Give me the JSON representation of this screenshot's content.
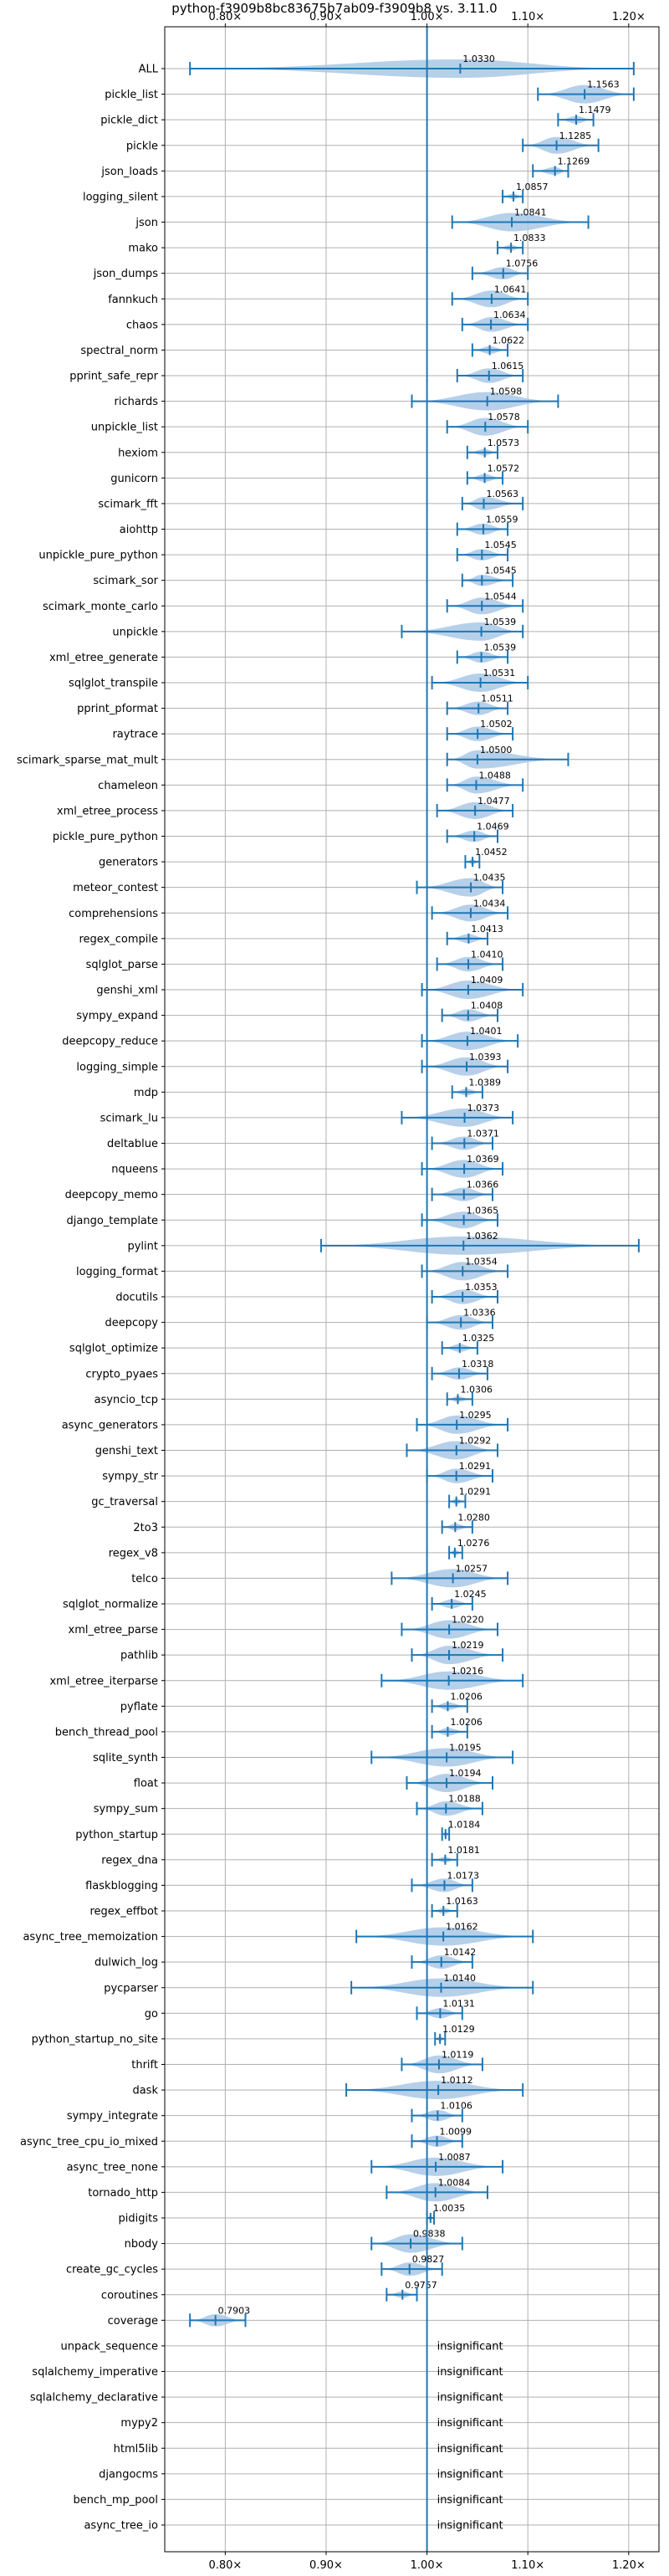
{
  "chart_data": {
    "type": "violin",
    "title": "python-f3909b8bc83675b7ab09-f3909b8 vs. 3.11.0",
    "xlabel": "",
    "ylabel": "",
    "xlim": [
      0.74,
      1.23
    ],
    "x_ticks": [
      0.8,
      0.9,
      1.0,
      1.1,
      1.2
    ],
    "x_tick_labels": [
      "0.80×",
      "0.90×",
      "1.00×",
      "1.10×",
      "1.20×"
    ],
    "reference_line": 1.0,
    "grid": true,
    "colors": {
      "violin": "#a9c8e6",
      "whisker": "#1f77b4",
      "refline": "#1f77b4",
      "grid": "#b0b0b0"
    },
    "insignificant_label": "insignificant",
    "benchmarks": [
      {
        "name": "ALL",
        "mean": 1.033,
        "label": "1.0330",
        "min": 0.765,
        "max": 1.205
      },
      {
        "name": "pickle_list",
        "mean": 1.1563,
        "label": "1.1563",
        "min": 1.11,
        "max": 1.205
      },
      {
        "name": "pickle_dict",
        "mean": 1.1479,
        "label": "1.1479",
        "min": 1.13,
        "max": 1.165
      },
      {
        "name": "pickle",
        "mean": 1.1285,
        "label": "1.1285",
        "min": 1.095,
        "max": 1.17
      },
      {
        "name": "json_loads",
        "mean": 1.1269,
        "label": "1.1269",
        "min": 1.105,
        "max": 1.14
      },
      {
        "name": "logging_silent",
        "mean": 1.0857,
        "label": "1.0857",
        "min": 1.075,
        "max": 1.095
      },
      {
        "name": "json",
        "mean": 1.0841,
        "label": "1.0841",
        "min": 1.025,
        "max": 1.16
      },
      {
        "name": "mako",
        "mean": 1.0833,
        "label": "1.0833",
        "min": 1.07,
        "max": 1.095
      },
      {
        "name": "json_dumps",
        "mean": 1.0756,
        "label": "1.0756",
        "min": 1.045,
        "max": 1.1
      },
      {
        "name": "fannkuch",
        "mean": 1.0641,
        "label": "1.0641",
        "min": 1.025,
        "max": 1.1
      },
      {
        "name": "chaos",
        "mean": 1.0634,
        "label": "1.0634",
        "min": 1.035,
        "max": 1.1
      },
      {
        "name": "spectral_norm",
        "mean": 1.0622,
        "label": "1.0622",
        "min": 1.045,
        "max": 1.08
      },
      {
        "name": "pprint_safe_repr",
        "mean": 1.0615,
        "label": "1.0615",
        "min": 1.03,
        "max": 1.095
      },
      {
        "name": "richards",
        "mean": 1.0598,
        "label": "1.0598",
        "min": 0.985,
        "max": 1.13
      },
      {
        "name": "unpickle_list",
        "mean": 1.0578,
        "label": "1.0578",
        "min": 1.02,
        "max": 1.1
      },
      {
        "name": "hexiom",
        "mean": 1.0573,
        "label": "1.0573",
        "min": 1.04,
        "max": 1.07
      },
      {
        "name": "gunicorn",
        "mean": 1.0572,
        "label": "1.0572",
        "min": 1.04,
        "max": 1.075
      },
      {
        "name": "scimark_fft",
        "mean": 1.0563,
        "label": "1.0563",
        "min": 1.035,
        "max": 1.095
      },
      {
        "name": "aiohttp",
        "mean": 1.0559,
        "label": "1.0559",
        "min": 1.03,
        "max": 1.08
      },
      {
        "name": "unpickle_pure_python",
        "mean": 1.0545,
        "label": "1.0545",
        "min": 1.03,
        "max": 1.08
      },
      {
        "name": "scimark_sor",
        "mean": 1.0545,
        "label": "1.0545",
        "min": 1.035,
        "max": 1.085
      },
      {
        "name": "scimark_monte_carlo",
        "mean": 1.0544,
        "label": "1.0544",
        "min": 1.02,
        "max": 1.095
      },
      {
        "name": "unpickle",
        "mean": 1.0539,
        "label": "1.0539",
        "min": 0.975,
        "max": 1.095
      },
      {
        "name": "xml_etree_generate",
        "mean": 1.0539,
        "label": "1.0539",
        "min": 1.03,
        "max": 1.08
      },
      {
        "name": "sqlglot_transpile",
        "mean": 1.0531,
        "label": "1.0531",
        "min": 1.005,
        "max": 1.1
      },
      {
        "name": "pprint_pformat",
        "mean": 1.0511,
        "label": "1.0511",
        "min": 1.02,
        "max": 1.08
      },
      {
        "name": "raytrace",
        "mean": 1.0502,
        "label": "1.0502",
        "min": 1.02,
        "max": 1.085
      },
      {
        "name": "scimark_sparse_mat_mult",
        "mean": 1.05,
        "label": "1.0500",
        "min": 1.02,
        "max": 1.14
      },
      {
        "name": "chameleon",
        "mean": 1.0488,
        "label": "1.0488",
        "min": 1.02,
        "max": 1.095
      },
      {
        "name": "xml_etree_process",
        "mean": 1.0477,
        "label": "1.0477",
        "min": 1.01,
        "max": 1.085
      },
      {
        "name": "pickle_pure_python",
        "mean": 1.0469,
        "label": "1.0469",
        "min": 1.02,
        "max": 1.07
      },
      {
        "name": "generators",
        "mean": 1.0452,
        "label": "1.0452",
        "min": 1.038,
        "max": 1.052
      },
      {
        "name": "meteor_contest",
        "mean": 1.0435,
        "label": "1.0435",
        "min": 0.99,
        "max": 1.075
      },
      {
        "name": "comprehensions",
        "mean": 1.0434,
        "label": "1.0434",
        "min": 1.005,
        "max": 1.08
      },
      {
        "name": "regex_compile",
        "mean": 1.0413,
        "label": "1.0413",
        "min": 1.02,
        "max": 1.06
      },
      {
        "name": "sqlglot_parse",
        "mean": 1.041,
        "label": "1.0410",
        "min": 1.01,
        "max": 1.075
      },
      {
        "name": "genshi_xml",
        "mean": 1.0409,
        "label": "1.0409",
        "min": 0.995,
        "max": 1.095
      },
      {
        "name": "sympy_expand",
        "mean": 1.0408,
        "label": "1.0408",
        "min": 1.015,
        "max": 1.07
      },
      {
        "name": "deepcopy_reduce",
        "mean": 1.0401,
        "label": "1.0401",
        "min": 0.995,
        "max": 1.09
      },
      {
        "name": "logging_simple",
        "mean": 1.0393,
        "label": "1.0393",
        "min": 0.995,
        "max": 1.08
      },
      {
        "name": "mdp",
        "mean": 1.0389,
        "label": "1.0389",
        "min": 1.025,
        "max": 1.055
      },
      {
        "name": "scimark_lu",
        "mean": 1.0373,
        "label": "1.0373",
        "min": 0.975,
        "max": 1.085
      },
      {
        "name": "deltablue",
        "mean": 1.0371,
        "label": "1.0371",
        "min": 1.005,
        "max": 1.065
      },
      {
        "name": "nqueens",
        "mean": 1.0369,
        "label": "1.0369",
        "min": 0.995,
        "max": 1.075
      },
      {
        "name": "deepcopy_memo",
        "mean": 1.0366,
        "label": "1.0366",
        "min": 1.005,
        "max": 1.065
      },
      {
        "name": "django_template",
        "mean": 1.0365,
        "label": "1.0365",
        "min": 0.995,
        "max": 1.07
      },
      {
        "name": "pylint",
        "mean": 1.0362,
        "label": "1.0362",
        "min": 0.895,
        "max": 1.21
      },
      {
        "name": "logging_format",
        "mean": 1.0354,
        "label": "1.0354",
        "min": 0.995,
        "max": 1.08
      },
      {
        "name": "docutils",
        "mean": 1.0353,
        "label": "1.0353",
        "min": 1.005,
        "max": 1.07
      },
      {
        "name": "deepcopy",
        "mean": 1.0336,
        "label": "1.0336",
        "min": 1.0,
        "max": 1.065
      },
      {
        "name": "sqlglot_optimize",
        "mean": 1.0325,
        "label": "1.0325",
        "min": 1.015,
        "max": 1.05
      },
      {
        "name": "crypto_pyaes",
        "mean": 1.0318,
        "label": "1.0318",
        "min": 1.005,
        "max": 1.06
      },
      {
        "name": "asyncio_tcp",
        "mean": 1.0306,
        "label": "1.0306",
        "min": 1.02,
        "max": 1.045
      },
      {
        "name": "async_generators",
        "mean": 1.0295,
        "label": "1.0295",
        "min": 0.99,
        "max": 1.08
      },
      {
        "name": "genshi_text",
        "mean": 1.0292,
        "label": "1.0292",
        "min": 0.98,
        "max": 1.07
      },
      {
        "name": "sympy_str",
        "mean": 1.0291,
        "label": "1.0291",
        "min": 1.0,
        "max": 1.065
      },
      {
        "name": "gc_traversal",
        "mean": 1.0291,
        "label": "1.0291",
        "min": 1.022,
        "max": 1.038
      },
      {
        "name": "2to3",
        "mean": 1.028,
        "label": "1.0280",
        "min": 1.015,
        "max": 1.045
      },
      {
        "name": "regex_v8",
        "mean": 1.0276,
        "label": "1.0276",
        "min": 1.022,
        "max": 1.035
      },
      {
        "name": "telco",
        "mean": 1.0257,
        "label": "1.0257",
        "min": 0.965,
        "max": 1.08
      },
      {
        "name": "sqlglot_normalize",
        "mean": 1.0245,
        "label": "1.0245",
        "min": 1.005,
        "max": 1.045
      },
      {
        "name": "xml_etree_parse",
        "mean": 1.022,
        "label": "1.0220",
        "min": 0.975,
        "max": 1.07
      },
      {
        "name": "pathlib",
        "mean": 1.0219,
        "label": "1.0219",
        "min": 0.985,
        "max": 1.075
      },
      {
        "name": "xml_etree_iterparse",
        "mean": 1.0216,
        "label": "1.0216",
        "min": 0.955,
        "max": 1.095
      },
      {
        "name": "pyflate",
        "mean": 1.0206,
        "label": "1.0206",
        "min": 1.005,
        "max": 1.04
      },
      {
        "name": "bench_thread_pool",
        "mean": 1.0206,
        "label": "1.0206",
        "min": 1.005,
        "max": 1.04
      },
      {
        "name": "sqlite_synth",
        "mean": 1.0195,
        "label": "1.0195",
        "min": 0.945,
        "max": 1.085
      },
      {
        "name": "float",
        "mean": 1.0194,
        "label": "1.0194",
        "min": 0.98,
        "max": 1.065
      },
      {
        "name": "sympy_sum",
        "mean": 1.0188,
        "label": "1.0188",
        "min": 0.99,
        "max": 1.055
      },
      {
        "name": "python_startup",
        "mean": 1.0184,
        "label": "1.0184",
        "min": 1.015,
        "max": 1.022
      },
      {
        "name": "regex_dna",
        "mean": 1.0181,
        "label": "1.0181",
        "min": 1.005,
        "max": 1.03
      },
      {
        "name": "flaskblogging",
        "mean": 1.0173,
        "label": "1.0173",
        "min": 0.985,
        "max": 1.045
      },
      {
        "name": "regex_effbot",
        "mean": 1.0163,
        "label": "1.0163",
        "min": 1.005,
        "max": 1.03
      },
      {
        "name": "async_tree_memoization",
        "mean": 1.0162,
        "label": "1.0162",
        "min": 0.93,
        "max": 1.105
      },
      {
        "name": "dulwich_log",
        "mean": 1.0142,
        "label": "1.0142",
        "min": 0.985,
        "max": 1.045
      },
      {
        "name": "pycparser",
        "mean": 1.014,
        "label": "1.0140",
        "min": 0.925,
        "max": 1.105
      },
      {
        "name": "go",
        "mean": 1.0131,
        "label": "1.0131",
        "min": 0.99,
        "max": 1.035
      },
      {
        "name": "python_startup_no_site",
        "mean": 1.0129,
        "label": "1.0129",
        "min": 1.008,
        "max": 1.018
      },
      {
        "name": "thrift",
        "mean": 1.0119,
        "label": "1.0119",
        "min": 0.975,
        "max": 1.055
      },
      {
        "name": "dask",
        "mean": 1.0112,
        "label": "1.0112",
        "min": 0.92,
        "max": 1.095
      },
      {
        "name": "sympy_integrate",
        "mean": 1.0106,
        "label": "1.0106",
        "min": 0.985,
        "max": 1.035
      },
      {
        "name": "async_tree_cpu_io_mixed",
        "mean": 1.0099,
        "label": "1.0099",
        "min": 0.985,
        "max": 1.035
      },
      {
        "name": "async_tree_none",
        "mean": 1.0087,
        "label": "1.0087",
        "min": 0.945,
        "max": 1.075
      },
      {
        "name": "tornado_http",
        "mean": 1.0084,
        "label": "1.0084",
        "min": 0.96,
        "max": 1.06
      },
      {
        "name": "pidigits",
        "mean": 1.0035,
        "label": "1.0035",
        "min": 1.0,
        "max": 1.007
      },
      {
        "name": "nbody",
        "mean": 0.9838,
        "label": "0.9838",
        "min": 0.945,
        "max": 1.035
      },
      {
        "name": "create_gc_cycles",
        "mean": 0.9827,
        "label": "0.9827",
        "min": 0.955,
        "max": 1.015
      },
      {
        "name": "coroutines",
        "mean": 0.9757,
        "label": "0.9757",
        "min": 0.96,
        "max": 0.99
      },
      {
        "name": "coverage",
        "mean": 0.7903,
        "label": "0.7903",
        "min": 0.765,
        "max": 0.82
      },
      {
        "name": "unpack_sequence",
        "insignificant": true
      },
      {
        "name": "sqlalchemy_imperative",
        "insignificant": true
      },
      {
        "name": "sqlalchemy_declarative",
        "insignificant": true
      },
      {
        "name": "mypy2",
        "insignificant": true
      },
      {
        "name": "html5lib",
        "insignificant": true
      },
      {
        "name": "djangocms",
        "insignificant": true
      },
      {
        "name": "bench_mp_pool",
        "insignificant": true
      },
      {
        "name": "async_tree_io",
        "insignificant": true
      }
    ]
  }
}
